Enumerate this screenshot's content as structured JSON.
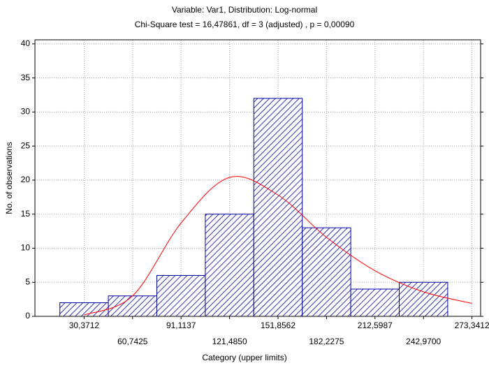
{
  "chart_data": {
    "type": "bar",
    "title": "Variable: Var1, Distribution: Log-normal",
    "subtitle": "Chi-Square test = 16,47861, df = 3 (adjusted) , p = 0,00090",
    "x_label": "Category (upper limits)",
    "y_label": "No. of observations",
    "categories": [
      "30,3712",
      "60,7425",
      "91,1137",
      "121,4850",
      "151,8562",
      "182,2275",
      "212,5987",
      "242,9700",
      "273,3412"
    ],
    "series": [
      {
        "type": "bar",
        "color": "#0000a0",
        "values": [
          2,
          3,
          6,
          15,
          32,
          13,
          4,
          5,
          0
        ]
      },
      {
        "type": "line",
        "color": "#ff0000",
        "values": [
          0.2,
          3,
          13.7,
          20.4,
          17.8,
          11.6,
          6.7,
          3.6,
          1.9
        ]
      }
    ],
    "ylim": [
      0,
      40.6
    ],
    "yticks": [
      0,
      5,
      10,
      15,
      20,
      25,
      30,
      35,
      40
    ],
    "grid": true
  }
}
